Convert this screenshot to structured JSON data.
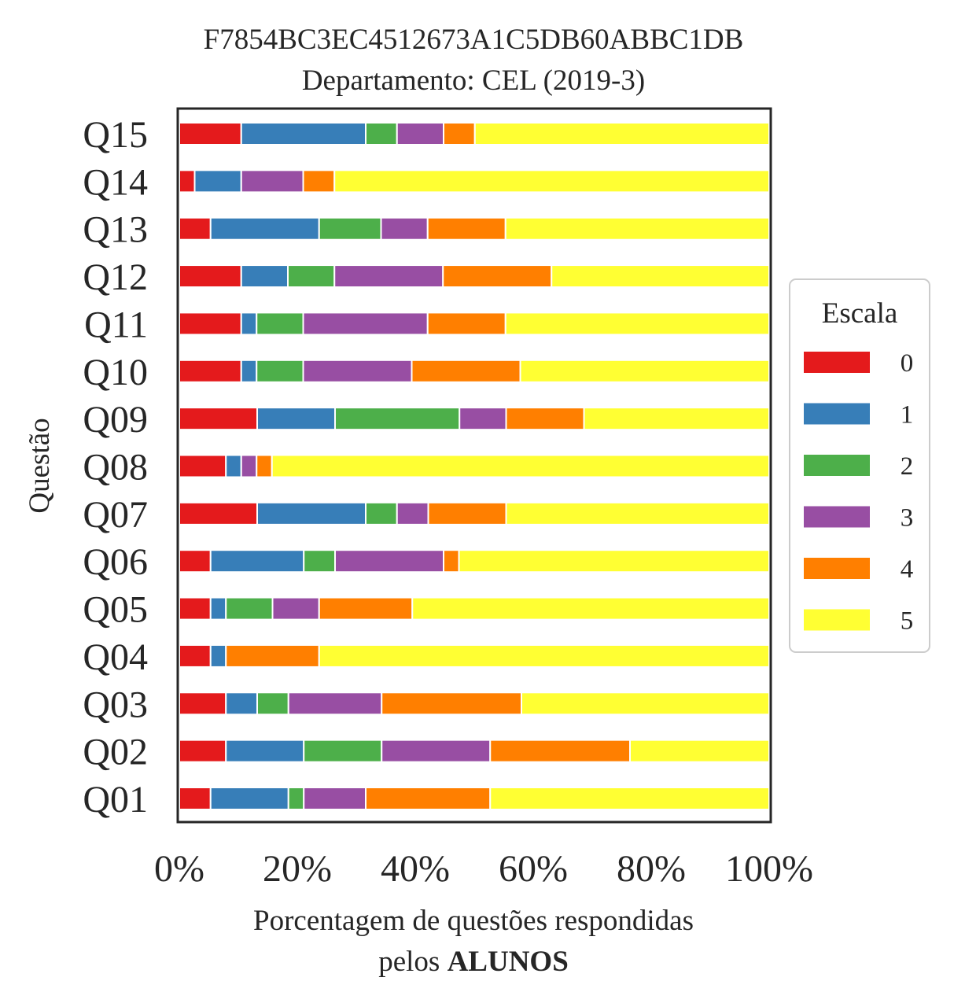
{
  "chart_data": {
    "type": "bar",
    "orientation": "horizontal",
    "stacked": true,
    "title": "F7854BC3EC4512673A1C5DB60ABBC1DB",
    "subtitle": "Departamento: CEL (2019-3)",
    "xlabel": "Porcentagem de questões respondidas",
    "xlabel_line2_prefix": "pelos ",
    "xlabel_line2_bold": "ALUNOS",
    "ylabel": "Questão",
    "xlim": [
      0,
      100
    ],
    "xticks": [
      "0%",
      "20%",
      "40%",
      "60%",
      "80%",
      "100%"
    ],
    "categories": [
      "Q01",
      "Q02",
      "Q03",
      "Q04",
      "Q05",
      "Q06",
      "Q07",
      "Q08",
      "Q09",
      "Q10",
      "Q11",
      "Q12",
      "Q13",
      "Q14",
      "Q15"
    ],
    "legend": {
      "title": "Escala",
      "position": "center-right"
    },
    "grid": false,
    "series": [
      {
        "name": "0",
        "color": "#e41a1c",
        "values": [
          5.3,
          7.9,
          7.9,
          5.3,
          5.3,
          5.3,
          13.2,
          7.9,
          13.2,
          10.5,
          10.5,
          10.5,
          5.3,
          2.6,
          10.5
        ]
      },
      {
        "name": "1",
        "color": "#377eb8",
        "values": [
          13.2,
          13.2,
          5.3,
          2.6,
          2.6,
          15.8,
          18.4,
          2.6,
          13.2,
          2.6,
          2.6,
          7.9,
          18.4,
          7.9,
          21.1
        ]
      },
      {
        "name": "2",
        "color": "#4daf4a",
        "values": [
          2.6,
          13.2,
          5.3,
          0,
          7.9,
          5.3,
          5.3,
          0,
          21.1,
          7.9,
          7.9,
          7.9,
          10.5,
          0,
          5.3
        ]
      },
      {
        "name": "3",
        "color": "#984ea3",
        "values": [
          10.5,
          18.4,
          15.8,
          0,
          7.9,
          18.4,
          5.3,
          2.6,
          7.9,
          18.4,
          21.1,
          18.4,
          7.9,
          10.5,
          7.9
        ]
      },
      {
        "name": "4",
        "color": "#ff7f00",
        "values": [
          21.1,
          23.7,
          23.7,
          15.8,
          15.8,
          2.6,
          13.2,
          2.6,
          13.2,
          18.4,
          13.2,
          18.4,
          13.2,
          5.3,
          5.3
        ]
      },
      {
        "name": "5",
        "color": "#ffff33",
        "values": [
          47.3,
          23.6,
          42.0,
          76.3,
          60.5,
          52.6,
          44.6,
          84.3,
          31.4,
          42.2,
          44.7,
          36.9,
          44.7,
          73.7,
          49.9
        ]
      }
    ]
  }
}
